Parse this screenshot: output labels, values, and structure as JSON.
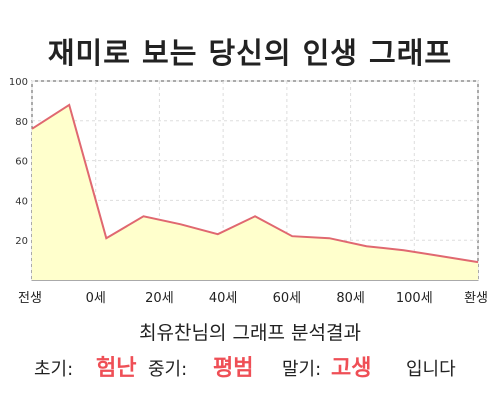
{
  "title": "재미로 보는 당신의 인생 그래프",
  "chart_data": {
    "type": "area",
    "title": "재미로 보는 당신의 인생 그래프",
    "x_ticks": [
      "전생",
      "0세",
      "20세",
      "40세",
      "60세",
      "80세",
      "100세",
      "환생"
    ],
    "y_ticks": [
      20,
      40,
      60,
      80,
      100
    ],
    "ylim": [
      0,
      100
    ],
    "grid": true,
    "fill_color": "#ffffcc",
    "line_color": "#e06870",
    "values": [
      76,
      88,
      21,
      32,
      28,
      23,
      32,
      22,
      21,
      17,
      15,
      12,
      9
    ]
  },
  "result": {
    "title": "최유찬님의 그래프 분석결과",
    "early_label": "초기:",
    "early_value": "험난",
    "mid_label": "중기:",
    "mid_value": "평범",
    "late_label": "말기:",
    "late_value": "고생",
    "suffix": "입니다"
  },
  "colors": {
    "highlight": "#ef4f56"
  }
}
